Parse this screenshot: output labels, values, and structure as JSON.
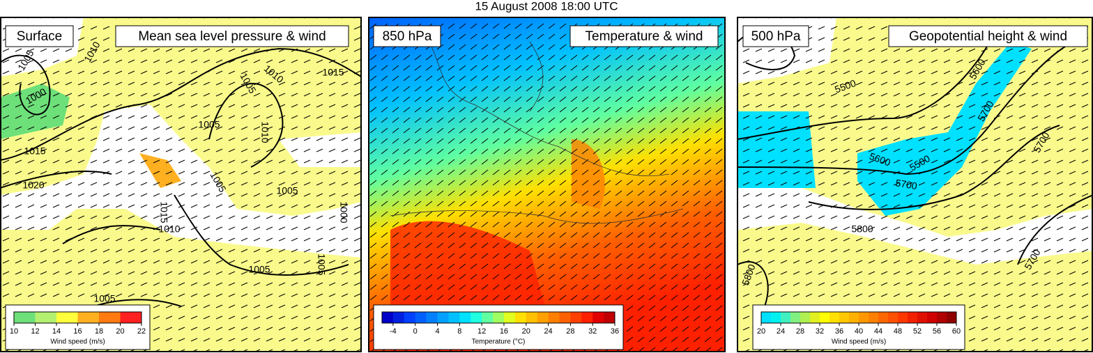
{
  "title": "15 August 2008 18:00 UTC",
  "panels": [
    {
      "level": "Surface",
      "field": "Mean sea level pressure & wind",
      "colorbar": {
        "label": "Wind speed (m/s)",
        "range": [
          10,
          22
        ],
        "ticks": [
          10,
          12,
          14,
          16,
          18,
          20,
          22
        ],
        "colors": [
          "#6ee07a",
          "#b4f070",
          "#ffff3c",
          "#ffb020",
          "#ff7a10",
          "#ff2020"
        ]
      },
      "contour_labels": [
        1005,
        1010,
        1000,
        1015,
        1020,
        1005,
        1010,
        1015,
        1005,
        1010,
        1005,
        1005,
        1015,
        1010,
        1000,
        1005,
        1005,
        1005
      ]
    },
    {
      "level": "850 hPa",
      "field": "Temperature & wind",
      "colorbar": {
        "label": "Temperature (°C)",
        "range": [
          -6,
          36
        ],
        "ticks": [
          -4,
          0,
          4,
          8,
          12,
          16,
          20,
          24,
          28,
          32,
          36
        ],
        "colors": [
          "#0000c8",
          "#0020e0",
          "#0040ff",
          "#0060ff",
          "#0080ff",
          "#00a0ff",
          "#00c0ff",
          "#00e0ff",
          "#20ffe0",
          "#60ffa0",
          "#a0ff60",
          "#e0ff20",
          "#ffe000",
          "#ffc000",
          "#ffa000",
          "#ff8000",
          "#ff6000",
          "#ff4000",
          "#ff2000",
          "#e00000",
          "#c00000"
        ]
      },
      "contour_labels": []
    },
    {
      "level": "500 hPa",
      "field": "Geopotential height & wind",
      "colorbar": {
        "label": "Wind speed (m/s)",
        "range": [
          20,
          60
        ],
        "ticks": [
          20,
          24,
          28,
          32,
          36,
          40,
          44,
          48,
          52,
          56,
          60
        ],
        "colors": [
          "#00e0ff",
          "#00f0f0",
          "#40f0c0",
          "#80f080",
          "#b0f050",
          "#e0f020",
          "#ffff00",
          "#ffe000",
          "#ffc800",
          "#ffb000",
          "#ff9800",
          "#ff8000",
          "#ff6800",
          "#ff5000",
          "#ff3800",
          "#f02000",
          "#e01000",
          "#d00000",
          "#b00000",
          "#900000"
        ]
      },
      "contour_labels": [
        5500,
        5600,
        5700,
        5600,
        5500,
        5700,
        5800,
        5700,
        5700,
        5800
      ]
    }
  ]
}
